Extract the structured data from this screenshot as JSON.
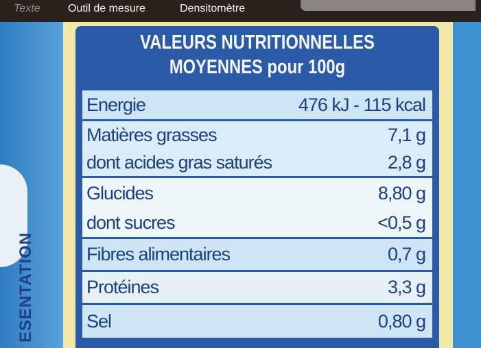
{
  "toolbar": {
    "items": [
      "Texte",
      "Outil de mesure",
      "Densitomètre"
    ]
  },
  "side_text": "ESENTATION",
  "label": {
    "title_line1": "VALEURS NUTRITIONNELLES",
    "title_line2": "MOYENNES pour 100g",
    "rows": [
      {
        "label": "Energie",
        "value": "476 kJ - 115 kcal"
      },
      {
        "label": "Matières grasses",
        "value": "7,1 g"
      },
      {
        "label": "dont acides gras saturés",
        "value": "2,8 g"
      },
      {
        "label": "Glucides",
        "value": "8,80 g"
      },
      {
        "label": "dont sucres",
        "value": "<0,5 g"
      },
      {
        "label": "Fibres alimentaires",
        "value": "0,7 g"
      },
      {
        "label": "Protéines",
        "value": "3,3 g"
      },
      {
        "label": "Sel",
        "value": "0,80 g"
      }
    ]
  },
  "colors": {
    "panel": "#2a5aa8",
    "text": "#1d3f87",
    "row_light": "#cde5f4",
    "row_pale": "#e9f3f8"
  }
}
